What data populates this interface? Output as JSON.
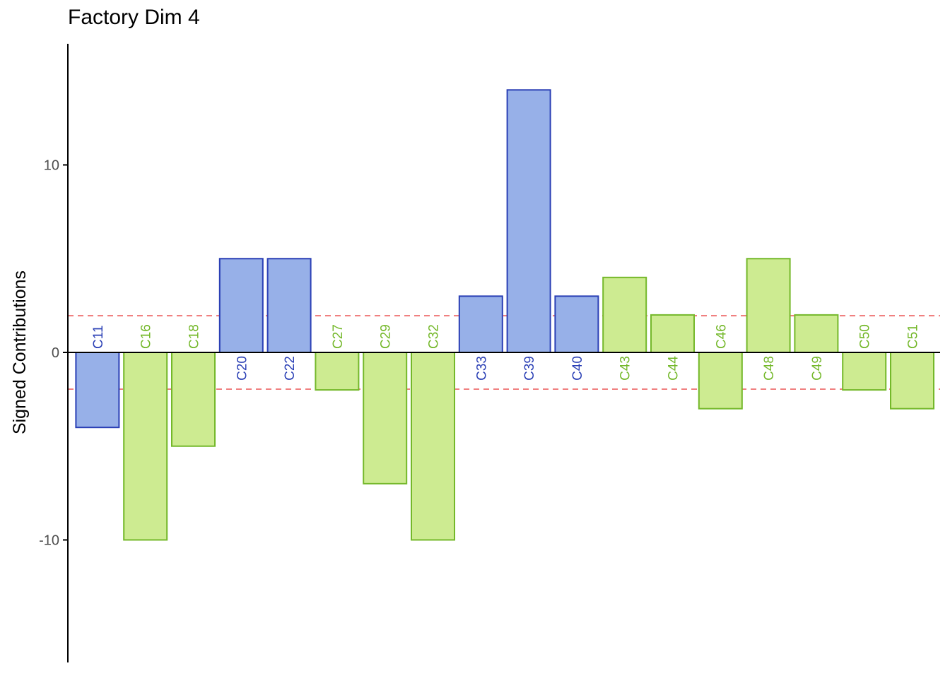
{
  "chart_data": {
    "type": "bar",
    "title": "Factory Dim 4",
    "xlabel": "",
    "ylabel": "Signed Contributions",
    "ylim": [
      -16.3,
      16.3
    ],
    "yticks": [
      -10,
      0,
      10
    ],
    "threshold_lines": [
      1.96,
      -1.96
    ],
    "categories": [
      "C11",
      "C16",
      "C18",
      "C20",
      "C22",
      "C27",
      "C29",
      "C32",
      "C33",
      "C39",
      "C40",
      "C43",
      "C44",
      "C46",
      "C48",
      "C49",
      "C50",
      "C51"
    ],
    "values": [
      -4,
      -10,
      -5,
      5,
      5,
      -2,
      -7,
      -10,
      3,
      14,
      3,
      4,
      2,
      -3,
      5,
      2,
      -2,
      -3
    ],
    "groups": [
      "blue",
      "green",
      "green",
      "blue",
      "blue",
      "green",
      "green",
      "green",
      "blue",
      "blue",
      "blue",
      "green",
      "green",
      "green",
      "green",
      "green",
      "green",
      "green"
    ],
    "grid": false,
    "colors": {
      "blue_fill": "#97b0e8",
      "blue_stroke": "#2a3fb5",
      "green_fill": "#cdeb91",
      "green_stroke": "#74b82a",
      "threshold": "#f08080",
      "axis": "#000000",
      "tick_label": "#4d4d4d"
    }
  }
}
